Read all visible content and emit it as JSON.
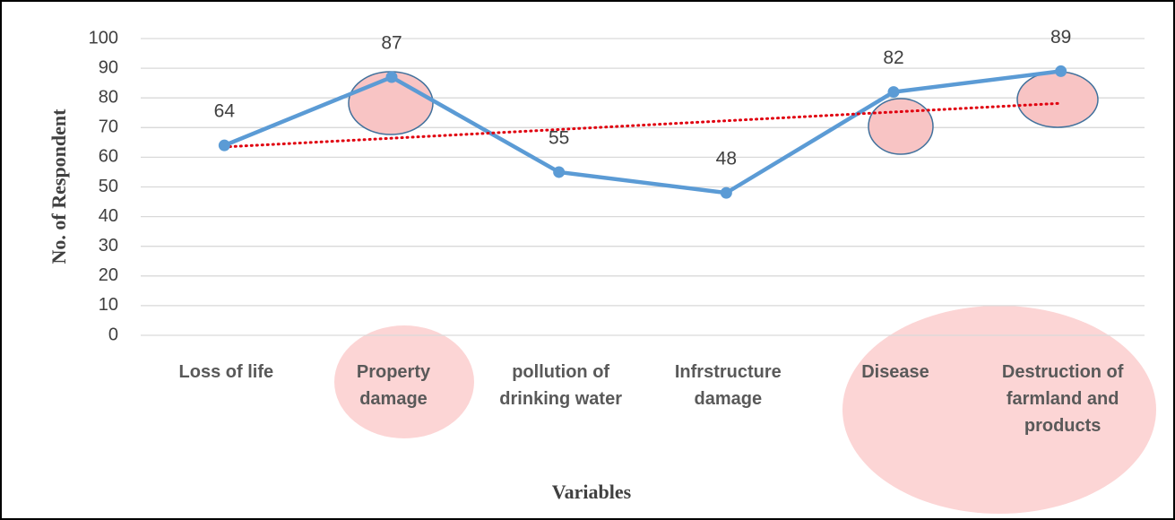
{
  "chart_data": {
    "type": "line",
    "categories": [
      "Loss of life",
      "Property damage",
      "pollution of drinking water",
      "Infrstructure damage",
      "Disease",
      "Destruction of farmland and products"
    ],
    "series": [
      {
        "name": "No. of Respondent",
        "color": "#5b9bd5",
        "values": [
          64,
          87,
          55,
          48,
          82,
          89
        ]
      }
    ],
    "trendline": {
      "type": "linear",
      "color": "#e0000f"
    },
    "ylim": [
      0,
      100
    ],
    "yticks": [
      0,
      10,
      20,
      30,
      40,
      50,
      60,
      70,
      80,
      90,
      100
    ],
    "grid": true,
    "y_label": "No. of Respondent",
    "x_label": "Variables"
  }
}
